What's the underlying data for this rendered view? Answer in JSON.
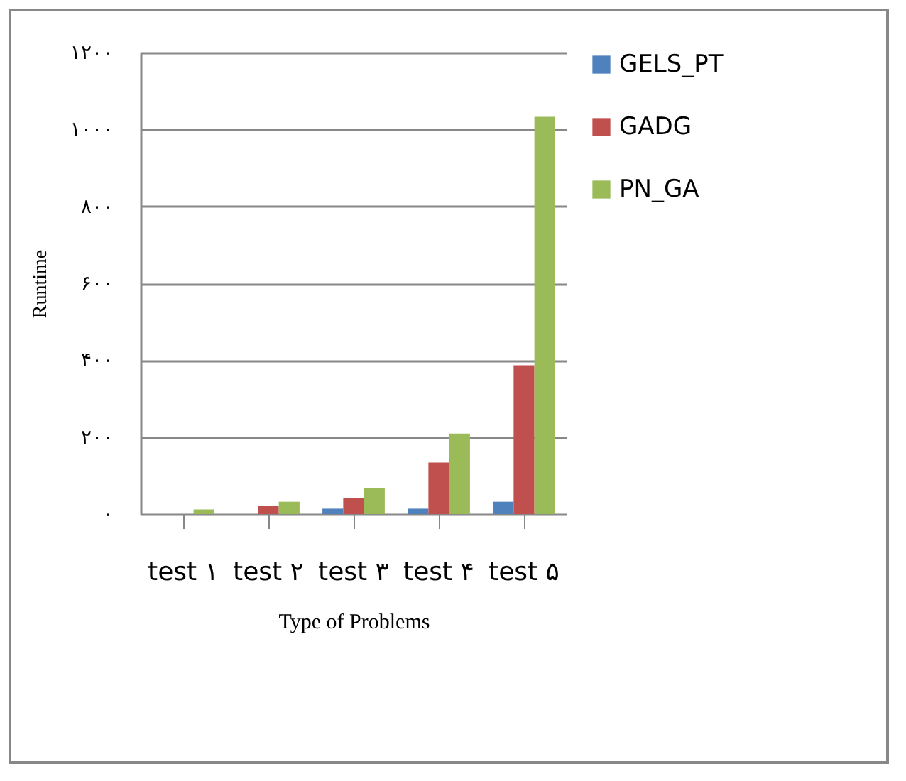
{
  "chart_data": {
    "type": "bar",
    "xlabel": "Type of Problems",
    "ylabel": "Runtime",
    "categories": [
      "test ۱",
      "test ۲",
      "test ۳",
      "test ۴",
      "test ۵"
    ],
    "series": [
      {
        "name": "GELS_PT",
        "color": "#4f81bd",
        "values": [
          null,
          null,
          14,
          14,
          32
        ]
      },
      {
        "name": "GADG",
        "color": "#c0504d",
        "values": [
          null,
          21,
          41,
          134,
          387
        ]
      },
      {
        "name": "PN_GA",
        "color": "#9bbb59",
        "values": [
          12,
          32,
          68,
          209,
          1033
        ]
      }
    ],
    "ylim": [
      0,
      1200
    ],
    "yticks": [
      {
        "value": 0,
        "label": "۰"
      },
      {
        "value": 200,
        "label": "۲۰۰"
      },
      {
        "value": 400,
        "label": "۴۰۰"
      },
      {
        "value": 600,
        "label": "۶۰۰"
      },
      {
        "value": 800,
        "label": "۸۰۰"
      },
      {
        "value": 1000,
        "label": "۱۰۰۰"
      },
      {
        "value": 1200,
        "label": "۱۲۰۰"
      }
    ],
    "grid": "y",
    "legend": "right"
  }
}
